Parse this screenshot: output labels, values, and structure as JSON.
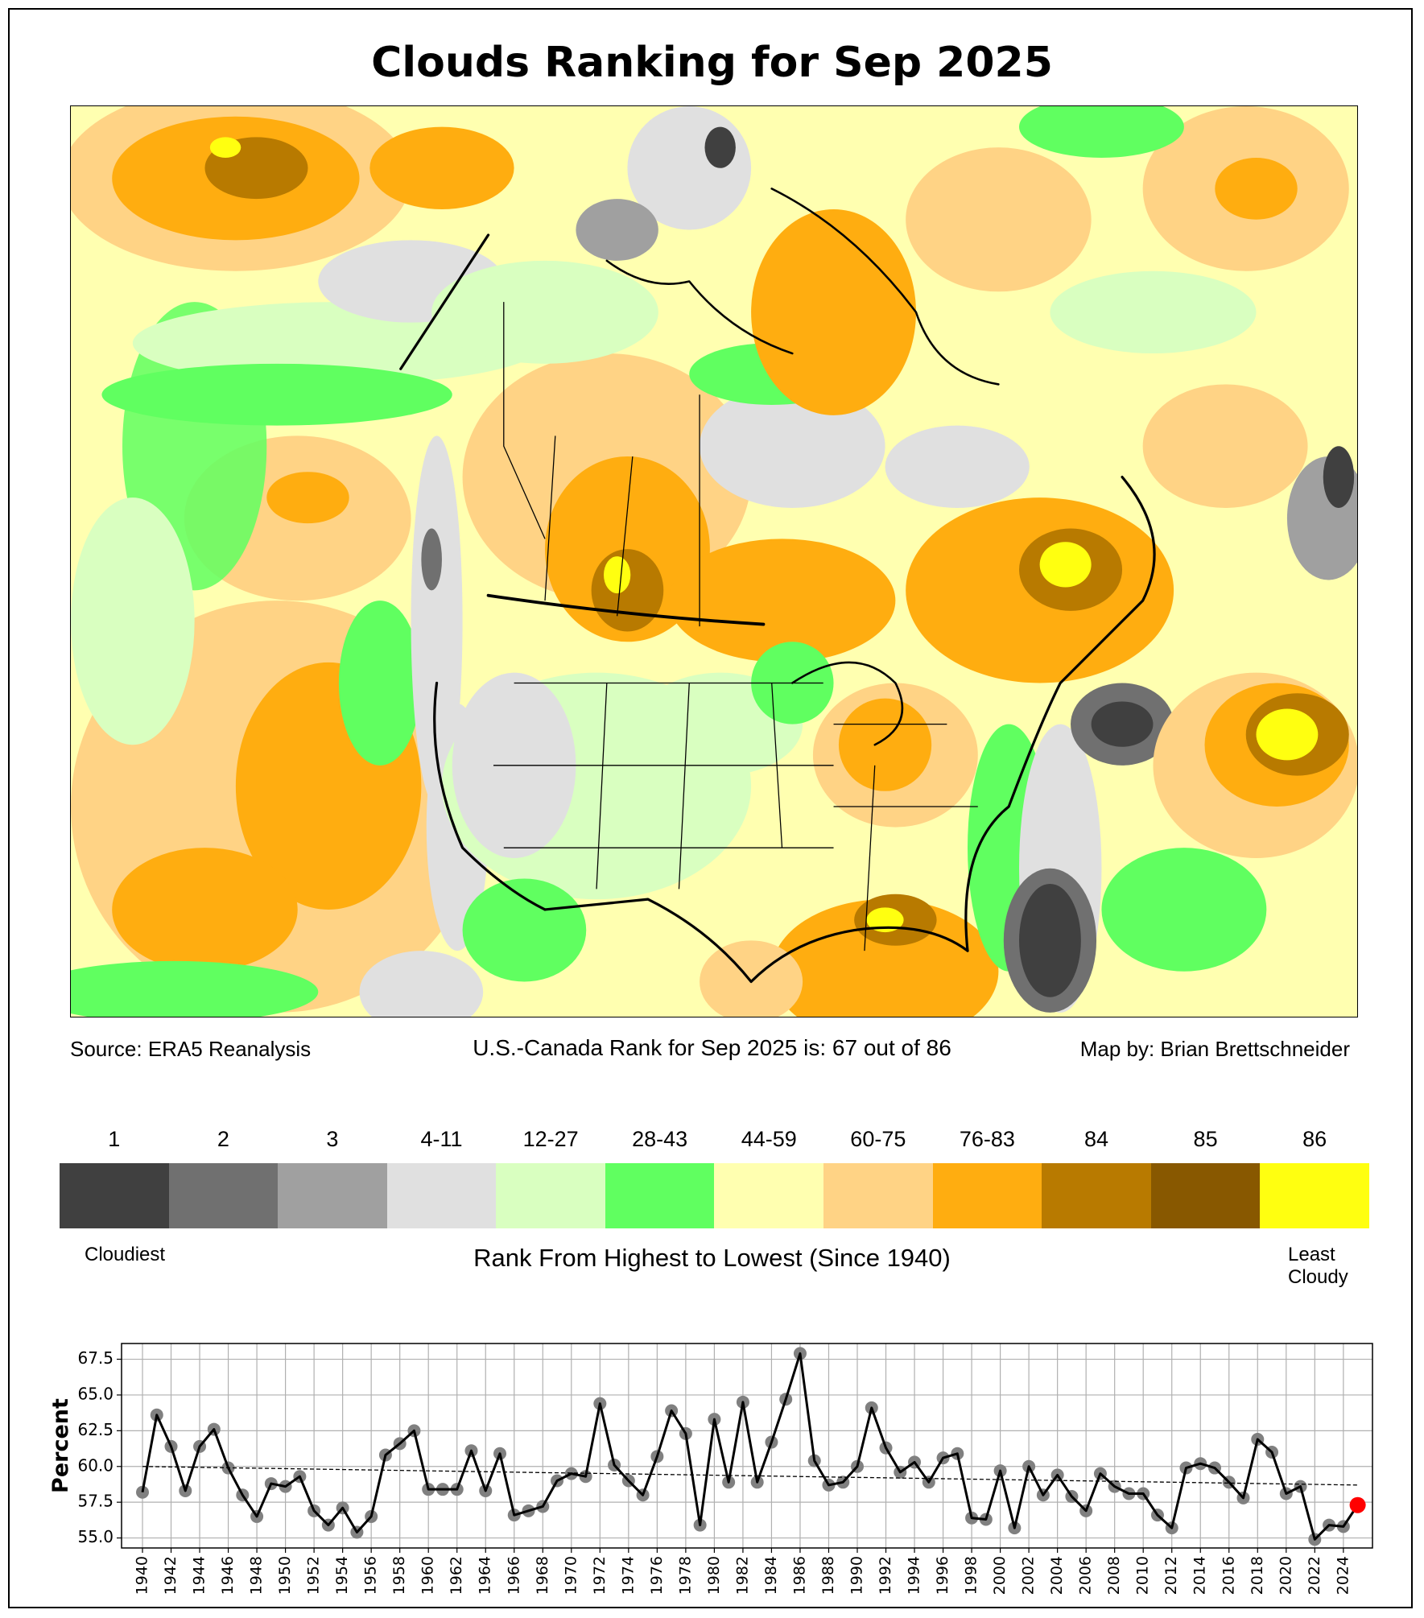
{
  "title": "Clouds Ranking for Sep 2025",
  "source": "Source: ERA5 Reanalysis",
  "rank_text": "U.S.-Canada Rank for Sep 2025 is: 67 out of 86",
  "credit": "Map by: Brian Brettschneider",
  "legend": {
    "labels": [
      "1",
      "2",
      "3",
      "4-11",
      "12-27",
      "28-43",
      "44-59",
      "60-75",
      "76-83",
      "84",
      "85",
      "86"
    ],
    "colors": [
      "#404040",
      "#707070",
      "#a0a0a0",
      "#e0e0e0",
      "#d9ffc0",
      "#60ff60",
      "#ffffb0",
      "#ffd385",
      "#ffad10",
      "#b87a00",
      "#885800",
      "#ffff10"
    ],
    "low_label": "Cloudiest",
    "high_label_1": "Least",
    "high_label_2": "Cloudy",
    "axis_title": "Rank From Highest to Lowest (Since 1940)"
  },
  "chart_data": {
    "type": "line",
    "title": "",
    "xlabel": "",
    "ylabel": "Percent",
    "ylim": [
      54.3,
      68.6
    ],
    "xlim": [
      1938.5,
      2026.5
    ],
    "grid": true,
    "yticks": [
      "55.0",
      "57.5",
      "60.0",
      "62.5",
      "65.0",
      "67.5"
    ],
    "ytick_values": [
      55.0,
      57.5,
      60.0,
      62.5,
      65.0,
      67.5
    ],
    "xticks": [
      1940,
      1942,
      1944,
      1946,
      1948,
      1950,
      1952,
      1954,
      1956,
      1958,
      1960,
      1962,
      1964,
      1966,
      1968,
      1970,
      1972,
      1974,
      1976,
      1978,
      1980,
      1982,
      1984,
      1986,
      1988,
      1990,
      1992,
      1994,
      1996,
      1998,
      2000,
      2002,
      2004,
      2006,
      2008,
      2010,
      2012,
      2014,
      2016,
      2018,
      2020,
      2022,
      2024
    ],
    "x_start": 1940,
    "values": [
      58.2,
      63.6,
      61.4,
      58.3,
      61.4,
      62.6,
      59.9,
      58.0,
      56.5,
      58.8,
      58.6,
      59.3,
      56.9,
      55.9,
      57.1,
      55.4,
      56.5,
      60.8,
      61.6,
      62.5,
      58.4,
      58.4,
      58.4,
      61.1,
      58.3,
      60.9,
      56.6,
      56.9,
      57.2,
      59.0,
      59.5,
      59.3,
      64.4,
      60.1,
      59.0,
      58.0,
      60.7,
      63.9,
      62.3,
      55.9,
      63.3,
      58.9,
      64.5,
      58.9,
      61.7,
      64.7,
      67.9,
      60.4,
      58.7,
      58.9,
      60.0,
      64.1,
      61.3,
      59.6,
      60.3,
      58.9,
      60.6,
      60.9,
      56.4,
      56.3,
      59.7,
      55.7,
      60.0,
      58.0,
      59.4,
      57.9,
      56.9,
      59.5,
      58.6,
      58.1,
      58.1,
      56.6,
      55.7,
      59.9,
      60.2,
      59.9,
      58.9,
      57.8,
      61.9,
      61.0,
      58.1,
      58.6,
      54.9,
      55.9,
      55.8,
      57.3
    ],
    "highlight": {
      "year": 2025,
      "value": 57.3,
      "color": "#ff0000"
    },
    "trend": {
      "start": [
        1940,
        60.0
      ],
      "end": [
        2025,
        58.7
      ]
    },
    "line_color": "#000000",
    "marker_color": "#808080"
  }
}
